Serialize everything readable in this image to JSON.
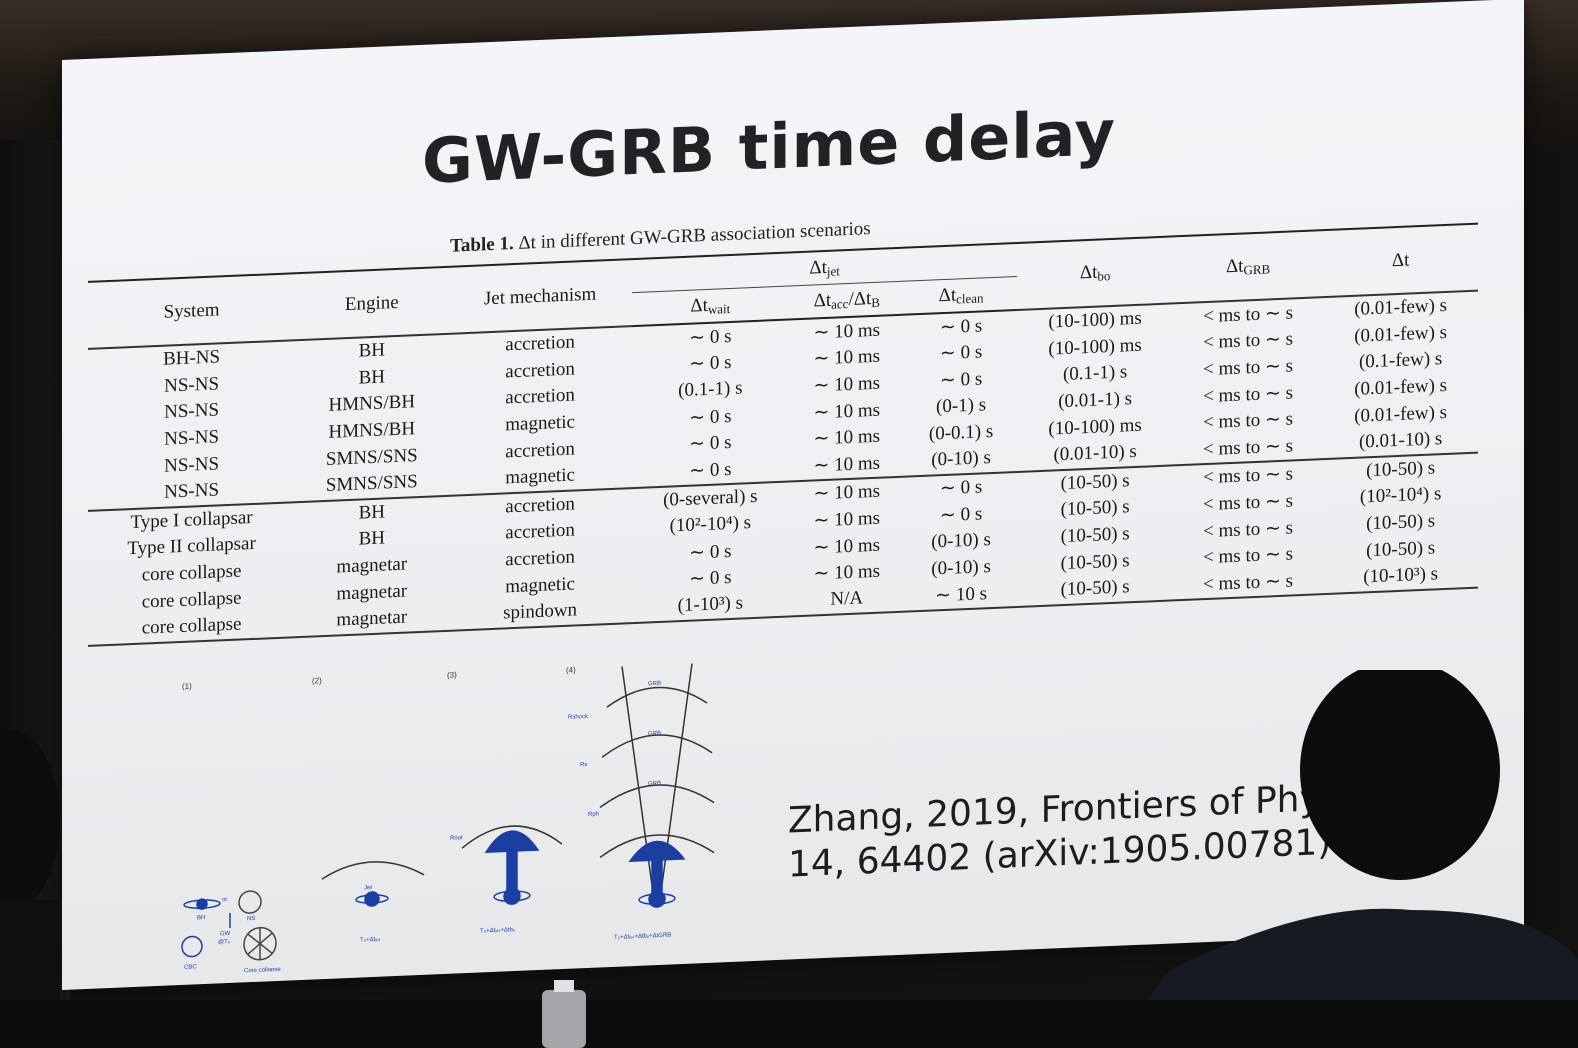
{
  "slide": {
    "title": "GW-GRB time delay",
    "caption_prefix": "Table 1.",
    "caption_text": "Δt in different GW-GRB association scenarios",
    "reference_line1": "Zhang, 2019, Frontiers of Physics",
    "reference_line2": "14, 64402 (arXiv:1905.00781)"
  },
  "table": {
    "headers": {
      "system": "System",
      "engine": "Engine",
      "jet_mechanism": "Jet mechanism",
      "dt_jet": "Δt",
      "dt_jet_sub": "jet",
      "dt_bo": "Δt",
      "dt_bo_sub": "bo",
      "dt_grb": "Δt",
      "dt_grb_sub": "GRB",
      "dt": "Δt",
      "wait": "Δt",
      "wait_sub": "wait",
      "acc": "Δt",
      "acc_sub": "acc",
      "acc_mid": "/Δt",
      "acc_sub2": "B",
      "clean": "Δt",
      "clean_sub": "clean"
    },
    "rows": [
      {
        "system": "BH-NS",
        "engine": "BH",
        "jet": "accretion",
        "wait": "∼ 0 s",
        "acc": "∼ 10 ms",
        "clean": "∼ 0 s",
        "bo": "(10-100) ms",
        "grb": "< ms to ∼ s",
        "dt": "(0.01-few) s"
      },
      {
        "system": "NS-NS",
        "engine": "BH",
        "jet": "accretion",
        "wait": "∼ 0 s",
        "acc": "∼ 10 ms",
        "clean": "∼ 0 s",
        "bo": "(10-100) ms",
        "grb": "< ms to ∼ s",
        "dt": "(0.01-few) s"
      },
      {
        "system": "NS-NS",
        "engine": "HMNS/BH",
        "jet": "accretion",
        "wait": "(0.1-1) s",
        "acc": "∼ 10 ms",
        "clean": "∼ 0 s",
        "bo": "(0.1-1) s",
        "grb": "< ms to ∼ s",
        "dt": "(0.1-few) s"
      },
      {
        "system": "NS-NS",
        "engine": "HMNS/BH",
        "jet": "magnetic",
        "wait": "∼ 0 s",
        "acc": "∼ 10 ms",
        "clean": "(0-1) s",
        "bo": "(0.01-1) s",
        "grb": "< ms to ∼ s",
        "dt": "(0.01-few) s"
      },
      {
        "system": "NS-NS",
        "engine": "SMNS/SNS",
        "jet": "accretion",
        "wait": "∼ 0 s",
        "acc": "∼ 10 ms",
        "clean": "(0-0.1) s",
        "bo": "(10-100) ms",
        "grb": "< ms to ∼ s",
        "dt": "(0.01-few) s"
      },
      {
        "system": "NS-NS",
        "engine": "SMNS/SNS",
        "jet": "magnetic",
        "wait": "∼ 0 s",
        "acc": "∼ 10 ms",
        "clean": "(0-10) s",
        "bo": "(0.01-10) s",
        "grb": "< ms to ∼ s",
        "dt": "(0.01-10) s"
      },
      {
        "system": "Type I collapsar",
        "engine": "BH",
        "jet": "accretion",
        "wait": "(0-several) s",
        "acc": "∼ 10 ms",
        "clean": "∼ 0 s",
        "bo": "(10-50) s",
        "grb": "< ms to ∼ s",
        "dt": "(10-50) s"
      },
      {
        "system": "Type II collapsar",
        "engine": "BH",
        "jet": "accretion",
        "wait": "(10²-10⁴) s",
        "acc": "∼ 10 ms",
        "clean": "∼ 0 s",
        "bo": "(10-50) s",
        "grb": "< ms to ∼ s",
        "dt": "(10²-10⁴) s"
      },
      {
        "system": "core collapse",
        "engine": "magnetar",
        "jet": "accretion",
        "wait": "∼ 0 s",
        "acc": "∼ 10 ms",
        "clean": "(0-10) s",
        "bo": "(10-50) s",
        "grb": "< ms to ∼ s",
        "dt": "(10-50) s"
      },
      {
        "system": "core collapse",
        "engine": "magnetar",
        "jet": "magnetic",
        "wait": "∼ 0 s",
        "acc": "∼ 10 ms",
        "clean": "(0-10) s",
        "bo": "(10-50) s",
        "grb": "< ms to ∼ s",
        "dt": "(10-50) s"
      },
      {
        "system": "core collapse",
        "engine": "magnetar",
        "jet": "spindown",
        "wait": "(1-10³) s",
        "acc": "N/A",
        "clean": "∼ 10 s",
        "bo": "(10-50) s",
        "grb": "< ms to ∼ s",
        "dt": "(10-10³) s"
      }
    ]
  },
  "figure": {
    "panel_labels": [
      "(1)",
      "(2)",
      "(3)",
      "(4)"
    ],
    "labels": {
      "bh": "BH",
      "ns": "NS",
      "or": "or",
      "gw": "GW",
      "gw_time": "@T₀",
      "cbc": "CBC",
      "core_collapse": "Core collapse",
      "jet": "Jet",
      "t2": "T₀+Δtⱼₑₜ",
      "t3": "T₀+Δtⱼₑₜ+Δtbₒ",
      "t4": "T₀+Δtⱼₑₜ+Δtbₒ+ΔtGRB",
      "grb": "GRB",
      "r_shock": "Rshock",
      "r_s": "Rs",
      "r_ph": "Rph",
      "r_out": "Rout"
    },
    "accent_color": "#1a3fa0"
  }
}
